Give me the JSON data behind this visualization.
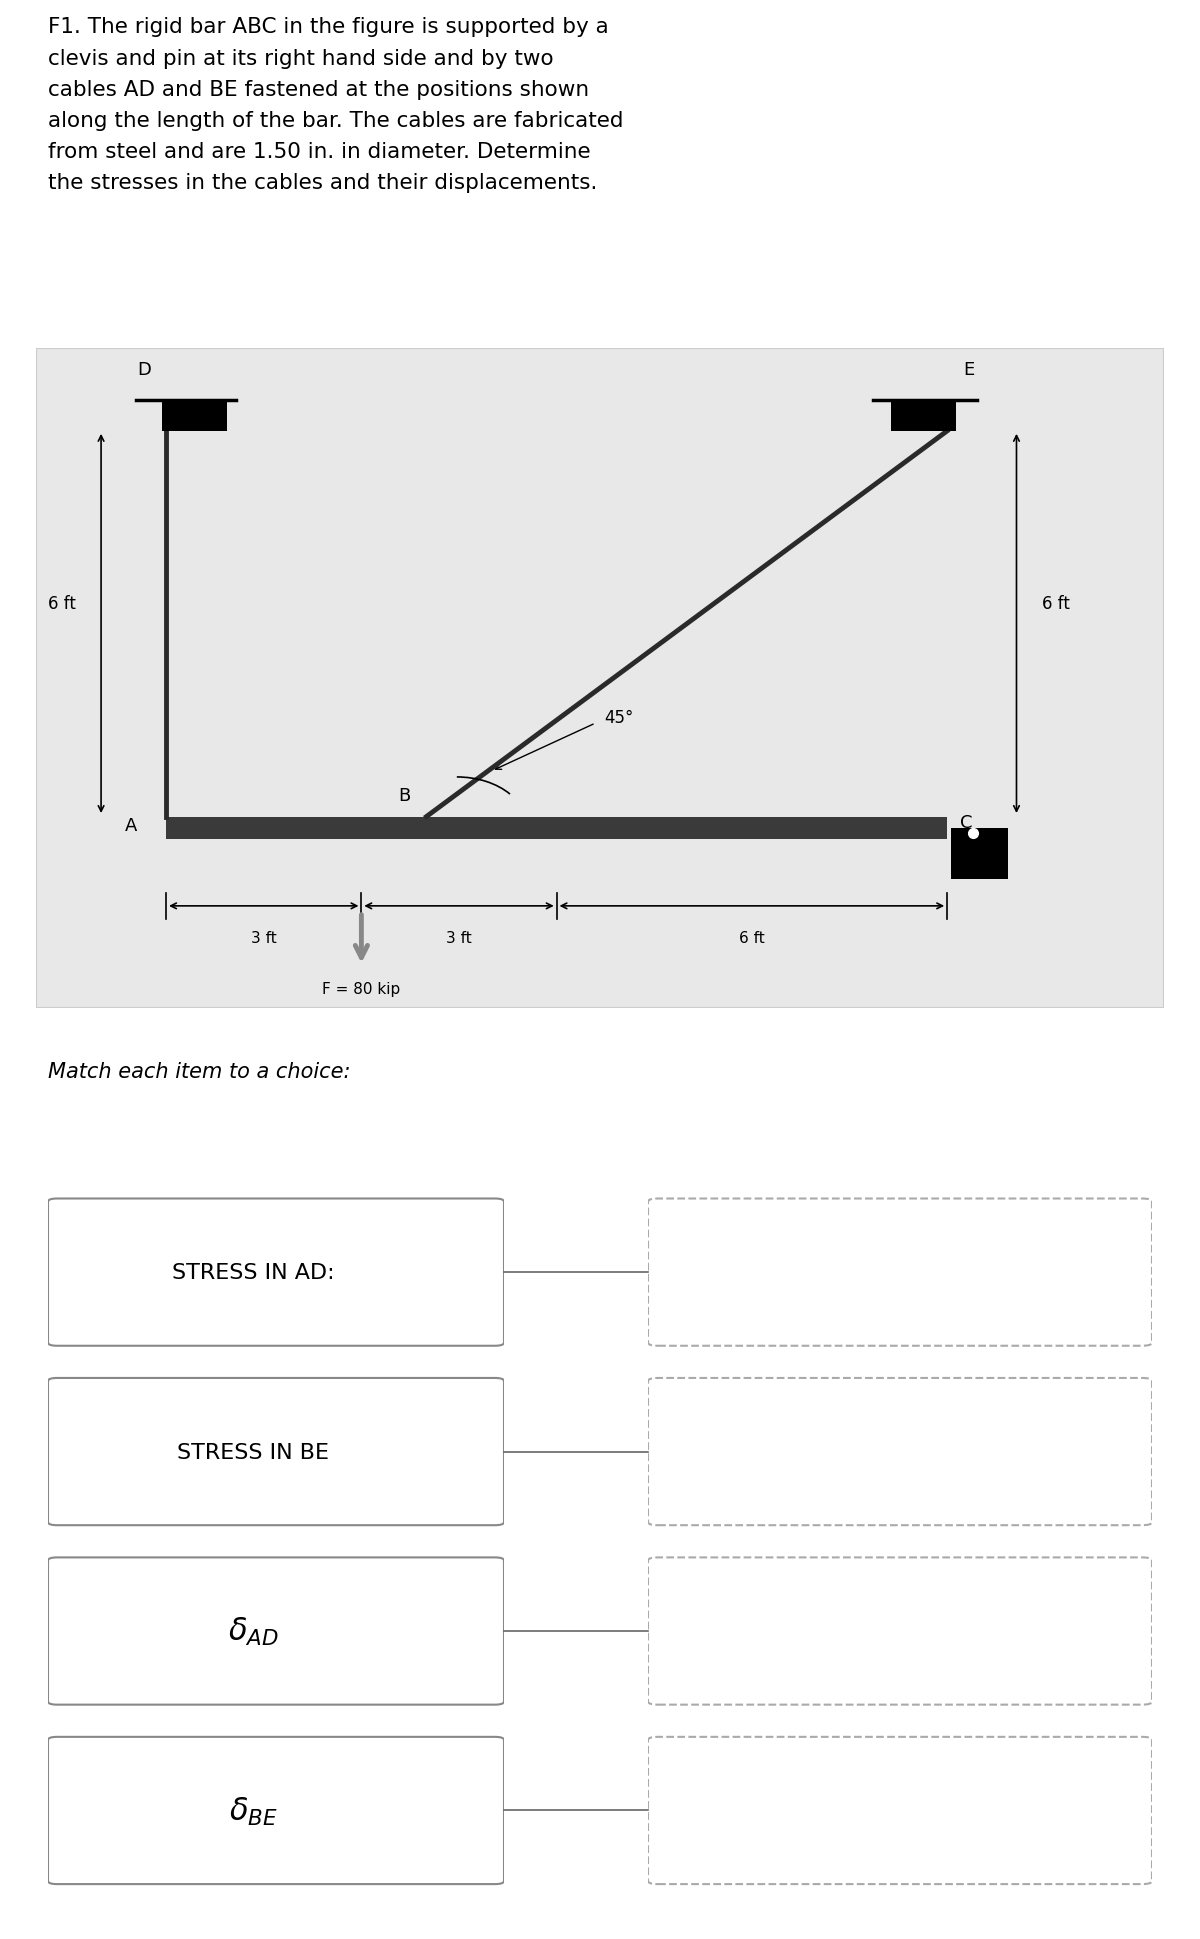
{
  "problem_text": "F1. The rigid bar ABC in the figure is supported by a\nclevis and pin at its right hand side and by two\ncables AD and BE fastened at the positions shown\nalong the length of the bar. The cables are fabricated\nfrom steel and are 1.50 in. in diameter. Determine\nthe stresses in the cables and their displacements.",
  "match_text": "Match each item to a choice:",
  "items": [
    "STRESS IN AD:",
    "STRESS IN BE",
    "delta_AD",
    "delta_BE"
  ],
  "items_math": [
    false,
    false,
    true,
    true
  ],
  "diagram_bg": "#e8e8e8",
  "bar_color": "#3a3a3a",
  "cable_color": "#2a2a2a",
  "wall_color": "#000000",
  "text_color": "#000000",
  "label_6ft_left": "6 ft",
  "label_6ft_right": "6 ft",
  "label_3ft_left": "3 ft",
  "label_3ft_mid": "3 ft",
  "label_6ft_bottom": "6 ft",
  "label_45": "45°",
  "label_F": "F = 80 kip",
  "label_D": "D",
  "label_E": "E",
  "label_A": "A",
  "label_B": "B",
  "label_C": "C"
}
